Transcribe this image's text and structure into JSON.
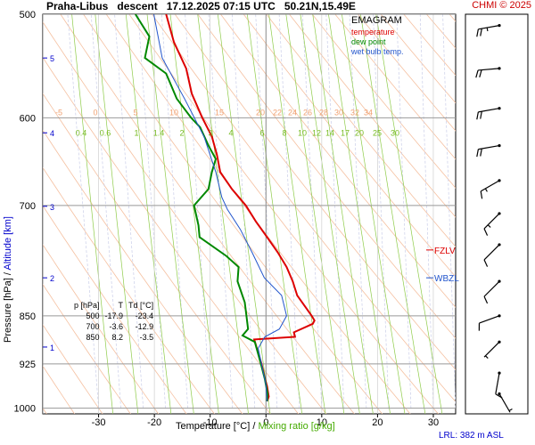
{
  "header": {
    "station": "Praha-Libus",
    "mode": "descent",
    "datetime": "17.12.2025 07:15 UTC",
    "coords": "50.21N,15.49E",
    "copyright": "CHMI © 2025"
  },
  "legend": {
    "title": "EMAGRAM",
    "items": [
      {
        "label": "temperature",
        "color": "#dd0000"
      },
      {
        "label": "dew point",
        "color": "#008800"
      },
      {
        "label": "wet bulb temp.",
        "color": "#2255cc"
      }
    ]
  },
  "axes": {
    "xlabel_temp": "Temperature [°C]",
    "xlabel_sep": "/",
    "xlabel_mix": "Mixing ratio [g/kg]",
    "ylabel_p": "Pressure [hPa]",
    "ylabel_sep": "/",
    "ylabel_alt": "Altitude [km]"
  },
  "footer": {
    "lrl": "LRL: 382 m ASL"
  },
  "levels_labels": {
    "fzlv": "FZLV",
    "wbzl": "WBZL"
  },
  "table": {
    "headers": [
      "p [hPa]",
      "T",
      "Td [°C]"
    ],
    "rows": [
      [
        "500",
        "-17.9",
        "-23.4"
      ],
      [
        "700",
        "-3.6",
        "-12.9"
      ],
      [
        "850",
        "8.2",
        "-3.5"
      ]
    ]
  },
  "chart_data": {
    "type": "line",
    "title": "EMAGRAM",
    "xlabel": "Temperature [°C] / Mixing ratio [g/kg]",
    "ylabel": "Pressure [hPa] / Altitude [km]",
    "xlim": [
      -40,
      34
    ],
    "ylim": [
      1010,
      500
    ],
    "x_ticks": [
      -30,
      -20,
      -10,
      0,
      10,
      20,
      30
    ],
    "pressure_ticks": [
      500,
      600,
      700,
      850,
      925,
      1000
    ],
    "altitude_ticks": [
      {
        "km": 1,
        "p": 898
      },
      {
        "km": 2,
        "p": 795
      },
      {
        "km": 3,
        "p": 701
      },
      {
        "km": 4,
        "p": 616
      },
      {
        "km": 5,
        "p": 540
      }
    ],
    "potential_temp_labels": [
      -5,
      0,
      5,
      10,
      15,
      20,
      22,
      24,
      26,
      28,
      30,
      32,
      34
    ],
    "mixing_ratio_labels": [
      0.4,
      0.6,
      1,
      1.4,
      2,
      3,
      4,
      6,
      8,
      10,
      12,
      14,
      17,
      20,
      25,
      30
    ],
    "fzlv_p": 757,
    "wbzl_p": 795,
    "series": [
      {
        "name": "temperature",
        "color": "#dd0000",
        "points": [
          [
            -17.9,
            500
          ],
          [
            -16.5,
            525
          ],
          [
            -14.3,
            550
          ],
          [
            -13.3,
            575
          ],
          [
            -11.4,
            600
          ],
          [
            -9.7,
            620
          ],
          [
            -8.8,
            640
          ],
          [
            -8.2,
            660
          ],
          [
            -6.1,
            680
          ],
          [
            -3.6,
            700
          ],
          [
            -1.8,
            720
          ],
          [
            0.2,
            740
          ],
          [
            2.1,
            760
          ],
          [
            3.7,
            780
          ],
          [
            4.8,
            800
          ],
          [
            5.6,
            820
          ],
          [
            8.2,
            850
          ],
          [
            8.7,
            857
          ],
          [
            8.4,
            862
          ],
          [
            5.0,
            875
          ],
          [
            5.2,
            882
          ],
          [
            -2.1,
            886
          ],
          [
            -0.8,
            925
          ],
          [
            -0.3,
            945
          ],
          [
            0.2,
            962
          ],
          [
            0.5,
            980
          ],
          [
            0.2,
            988
          ]
        ]
      },
      {
        "name": "dew point",
        "color": "#008800",
        "points": [
          [
            -23.4,
            500
          ],
          [
            -20.9,
            520
          ],
          [
            -21.7,
            540
          ],
          [
            -17.9,
            555
          ],
          [
            -16.0,
            580
          ],
          [
            -13.4,
            600
          ],
          [
            -11.8,
            610
          ],
          [
            -10.3,
            630
          ],
          [
            -9.0,
            645
          ],
          [
            -9.7,
            660
          ],
          [
            -10.3,
            680
          ],
          [
            -12.9,
            700
          ],
          [
            -12.1,
            725
          ],
          [
            -11.9,
            740
          ],
          [
            -7.1,
            765
          ],
          [
            -4.9,
            780
          ],
          [
            -5.1,
            800
          ],
          [
            -3.8,
            830
          ],
          [
            -3.5,
            850
          ],
          [
            -3.2,
            870
          ],
          [
            -4.2,
            880
          ],
          [
            -2.0,
            890
          ],
          [
            -0.9,
            925
          ],
          [
            -0.2,
            950
          ],
          [
            0.3,
            975
          ],
          [
            0.2,
            988
          ]
        ]
      },
      {
        "name": "wet bulb temp.",
        "color": "#2255cc",
        "points": [
          [
            -20.1,
            500
          ],
          [
            -18.6,
            540
          ],
          [
            -14.6,
            580
          ],
          [
            -11.1,
            620
          ],
          [
            -9.0,
            660
          ],
          [
            -7.9,
            690
          ],
          [
            -6.9,
            705
          ],
          [
            -4.6,
            730
          ],
          [
            -2.5,
            760
          ],
          [
            -0.3,
            795
          ],
          [
            2.8,
            820
          ],
          [
            3.7,
            850
          ],
          [
            2.4,
            870
          ],
          [
            -0.2,
            882
          ],
          [
            -1.4,
            900
          ],
          [
            -0.8,
            925
          ],
          [
            0.0,
            960
          ],
          [
            0.2,
            988
          ]
        ]
      }
    ],
    "wind_barbs": [
      {
        "p": 510,
        "dir_deg": 80,
        "speed_kt": 25
      },
      {
        "p": 550,
        "dir_deg": 85,
        "speed_kt": 20
      },
      {
        "p": 590,
        "dir_deg": 80,
        "speed_kt": 20
      },
      {
        "p": 630,
        "dir_deg": 80,
        "speed_kt": 20
      },
      {
        "p": 670,
        "dir_deg": 60,
        "speed_kt": 15
      },
      {
        "p": 710,
        "dir_deg": 45,
        "speed_kt": 15
      },
      {
        "p": 750,
        "dir_deg": 45,
        "speed_kt": 10
      },
      {
        "p": 800,
        "dir_deg": 45,
        "speed_kt": 10
      },
      {
        "p": 850,
        "dir_deg": 70,
        "speed_kt": 10
      },
      {
        "p": 890,
        "dir_deg": 45,
        "speed_kt": 5
      },
      {
        "p": 940,
        "dir_deg": 10,
        "speed_kt": 10
      },
      {
        "p": 975,
        "dir_deg": 330,
        "speed_kt": 5
      }
    ]
  }
}
